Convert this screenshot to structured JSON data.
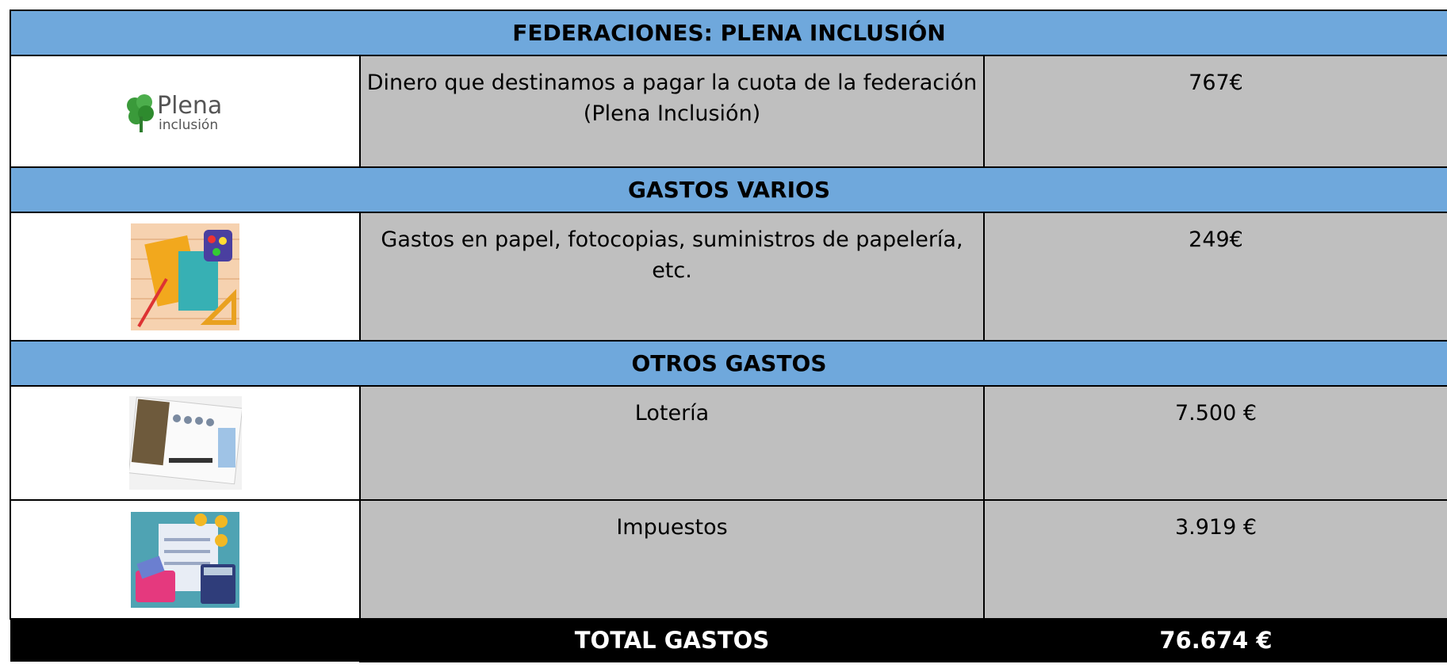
{
  "sections": [
    {
      "title": "FEDERACIONES: PLENA INCLUSIÓN",
      "rows": [
        {
          "logo": {
            "name": "Plena",
            "sub": "inclusión"
          },
          "description": "Dinero que destinamos a pagar la cuota de la federación (Plena Inclusión)",
          "amount": "767€"
        }
      ]
    },
    {
      "title": "GASTOS VARIOS",
      "rows": [
        {
          "description": "Gastos en papel, fotocopias, suministros de papelería, etc.",
          "amount": "249€"
        }
      ]
    },
    {
      "title": "OTROS GASTOS",
      "rows": [
        {
          "description": "Lotería",
          "amount": "7.500 €"
        },
        {
          "description": "Impuestos",
          "amount": "3.919 €"
        }
      ]
    }
  ],
  "total": {
    "label": "TOTAL GASTOS",
    "amount": "76.674 €"
  }
}
